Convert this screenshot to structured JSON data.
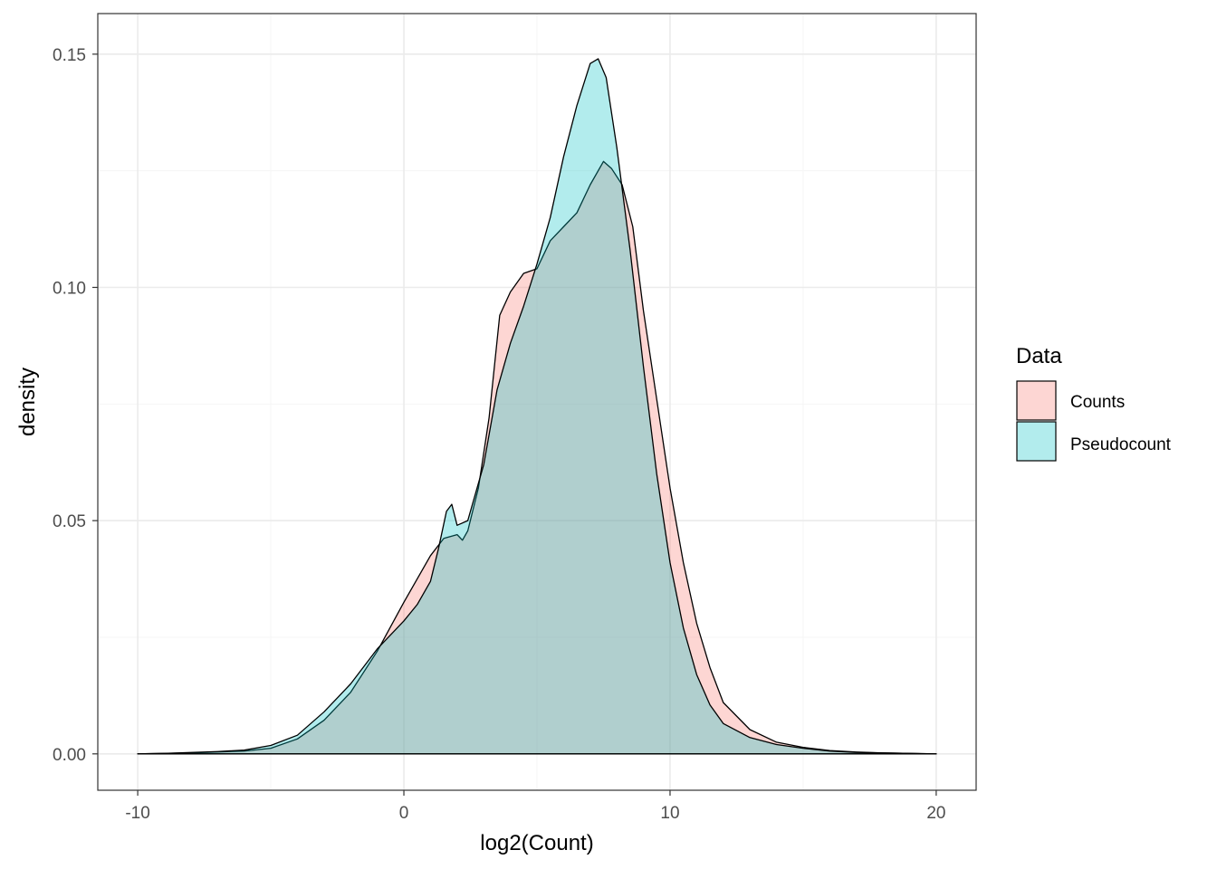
{
  "colors": {
    "counts": "#F8766D",
    "pseudocount": "#00BFC4",
    "grid_major": "#ebebeb",
    "grid_minor": "#f5f5f5",
    "panel_border": "#333333"
  },
  "chart_data": {
    "type": "area",
    "xlabel": "log2(Count)",
    "ylabel": "density",
    "xlim": [
      -11.5,
      21.5
    ],
    "ylim": [
      -0.0078,
      0.1587
    ],
    "x_ticks": [
      -10,
      0,
      10,
      20
    ],
    "x_tick_labels": [
      "-10",
      "0",
      "10",
      "20"
    ],
    "y_ticks": [
      0.0,
      0.05,
      0.1,
      0.15
    ],
    "y_tick_labels": [
      "0.00",
      "0.05",
      "0.10",
      "0.15"
    ],
    "grid": true,
    "legend": {
      "title": "Data",
      "position": "right"
    },
    "series": [
      {
        "name": "Counts",
        "color": "#F8766D",
        "x": [
          -10,
          -9,
          -8,
          -7,
          -6,
          -5,
          -4,
          -3,
          -2,
          -1,
          0,
          0.5,
          1,
          1.5,
          2,
          2.2,
          2.4,
          2.8,
          3.2,
          3.6,
          4,
          4.5,
          5,
          5.5,
          6,
          6.5,
          7,
          7.5,
          7.8,
          8.2,
          8.6,
          9,
          9.5,
          10,
          10.5,
          11,
          11.5,
          12,
          13,
          14,
          15,
          16,
          17,
          18,
          19,
          20
        ],
        "y": [
          0.0,
          0.0001,
          0.0002,
          0.0004,
          0.0006,
          0.0012,
          0.0032,
          0.0072,
          0.0132,
          0.022,
          0.0325,
          0.0375,
          0.0425,
          0.0462,
          0.047,
          0.0458,
          0.0478,
          0.057,
          0.072,
          0.094,
          0.099,
          0.103,
          0.104,
          0.11,
          0.113,
          0.116,
          0.122,
          0.127,
          0.1255,
          0.122,
          0.113,
          0.095,
          0.076,
          0.057,
          0.041,
          0.028,
          0.0185,
          0.011,
          0.0052,
          0.0025,
          0.0014,
          0.0007,
          0.0004,
          0.0002,
          0.0001,
          0.0
        ]
      },
      {
        "name": "Pseudocount",
        "color": "#00BFC4",
        "x": [
          -10,
          -9,
          -8,
          -7,
          -6,
          -5,
          -4,
          -3,
          -2,
          -1,
          0,
          0.5,
          1,
          1.3,
          1.6,
          1.8,
          2.0,
          2.4,
          3,
          3.5,
          4,
          4.5,
          5,
          5.5,
          6,
          6.5,
          7,
          7.3,
          7.6,
          8,
          8.5,
          9,
          9.5,
          10,
          10.5,
          11,
          11.5,
          12,
          13,
          14,
          15,
          16,
          17,
          18,
          19,
          20
        ],
        "y": [
          0.0,
          0.0001,
          0.0003,
          0.0005,
          0.0008,
          0.0018,
          0.004,
          0.009,
          0.015,
          0.0225,
          0.0285,
          0.032,
          0.037,
          0.044,
          0.052,
          0.0535,
          0.049,
          0.05,
          0.062,
          0.078,
          0.088,
          0.096,
          0.105,
          0.115,
          0.128,
          0.139,
          0.148,
          0.149,
          0.145,
          0.13,
          0.108,
          0.083,
          0.06,
          0.041,
          0.027,
          0.017,
          0.0105,
          0.0065,
          0.0035,
          0.002,
          0.0012,
          0.0006,
          0.0003,
          0.0002,
          0.0001,
          0.0
        ]
      }
    ]
  }
}
